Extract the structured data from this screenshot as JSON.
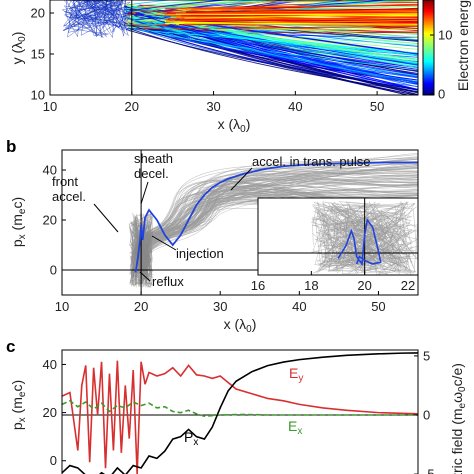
{
  "chart_data": [
    {
      "panel": "a",
      "type": "scatter",
      "xlabel": "x (λ₀)",
      "ylabel": "y (λ₀)",
      "xlim": [
        10,
        55
      ],
      "ylim": [
        10,
        24
      ],
      "xticks": [
        10,
        20,
        30,
        40,
        50
      ],
      "yticks": [
        10,
        15,
        20
      ],
      "colorbar": {
        "label": "Electron energ",
        "ticks": [
          0,
          10
        ],
        "range": [
          0,
          20
        ],
        "colormap": "jet"
      },
      "vline_x": 20
    },
    {
      "panel": "b",
      "type": "line",
      "label": "b",
      "xlabel": "x (λ₀)",
      "ylabel": "pₓ (mₑc)",
      "xlim": [
        10,
        55
      ],
      "ylim": [
        -10,
        48
      ],
      "xticks": [
        10,
        20,
        30,
        40,
        50
      ],
      "yticks": [
        0,
        20,
        40
      ],
      "vline_x": 20,
      "hline_y": 0,
      "series": [
        {
          "color": "#2244dd",
          "x": [
            19.3,
            19.6,
            19.9,
            20.0,
            20.2,
            20.5,
            21.0,
            21.5,
            22.0,
            23.0,
            24.0,
            25.0,
            26.0,
            27.0,
            28.0,
            29.0,
            30.0,
            31.0,
            32.0,
            33.0,
            34.0,
            35.0,
            36.0,
            38.0,
            40.0,
            42.0,
            45.0,
            48.0,
            51.0,
            55.0
          ],
          "y": [
            -1,
            5,
            13,
            18,
            12,
            21,
            24,
            22,
            20,
            14,
            10,
            14,
            20,
            26,
            30,
            33,
            35,
            36.5,
            37.5,
            38.5,
            39.2,
            40,
            40.6,
            41.5,
            42,
            42.3,
            42.6,
            42.8,
            43,
            43
          ]
        }
      ],
      "annotations": [
        "front accel.",
        "sheath decel.",
        "accel. in trans. pulse",
        "injection",
        "reflux"
      ],
      "inset": {
        "xlim": [
          16,
          22
        ],
        "xticks": [
          16,
          18,
          20,
          22
        ],
        "vline_x": 20,
        "hline_y": 0
      }
    },
    {
      "panel": "c",
      "type": "line",
      "label": "c",
      "xlabel": "",
      "ylabel": "pₓ (mₑc)",
      "ylabel_right": "tric field (mₑω₀c/e)",
      "xlim": [
        10,
        55
      ],
      "ylim": [
        -8,
        46
      ],
      "ylim_right": [
        -5.5,
        5.5
      ],
      "yticks": [
        0,
        20,
        40
      ],
      "yticks_right": [
        -5,
        0,
        5
      ],
      "hline_right_y": 0,
      "series": [
        {
          "name": "Eᵧ",
          "color": "#d83030",
          "axis": "right",
          "x": [
            10,
            11,
            12,
            12.5,
            13,
            13.5,
            14,
            14.5,
            15,
            15.5,
            16,
            16.5,
            17,
            17.5,
            18,
            18.5,
            19,
            19.5,
            20,
            20.5,
            21,
            22,
            23,
            24,
            25,
            26,
            27,
            28,
            29,
            30,
            32,
            34,
            36,
            38,
            40,
            43,
            46,
            50,
            55
          ],
          "y": [
            1.6,
            1.9,
            -3,
            2.5,
            4.2,
            -4,
            4,
            0,
            4.5,
            -4.5,
            3.5,
            -3,
            4.6,
            -3.2,
            2.5,
            -2,
            3.8,
            -5,
            4.5,
            2.6,
            3.6,
            3.3,
            3.5,
            4,
            3.3,
            4.2,
            3.4,
            3.3,
            3.1,
            3.3,
            2.2,
            1.8,
            1.4,
            1.2,
            0.9,
            0.6,
            0.4,
            0.2,
            0.1
          ]
        },
        {
          "name": "Eₓ",
          "color": "#3a9a2a",
          "axis": "right",
          "x": [
            10,
            11,
            12,
            13,
            14,
            15,
            16,
            17,
            18,
            19,
            20,
            21,
            22,
            23,
            24,
            25,
            26,
            27,
            28,
            30,
            33,
            36,
            40,
            45,
            50,
            55
          ],
          "y": [
            0.9,
            1.2,
            0.7,
            1.1,
            0.5,
            1.0,
            0.3,
            0.8,
            0.6,
            1.1,
            0.8,
            1.0,
            0.6,
            0.7,
            0.3,
            0.2,
            0.4,
            0.1,
            -0.1,
            0,
            0.05,
            0,
            0,
            0,
            0,
            0
          ]
        },
        {
          "name": "Pₓ",
          "color": "#000000",
          "axis": "left",
          "x": [
            10,
            11,
            12,
            13,
            14,
            15,
            16,
            17,
            18,
            19,
            20,
            21,
            22,
            23,
            24,
            25,
            26,
            27,
            28,
            29,
            30,
            31,
            32,
            34,
            36,
            38,
            40,
            43,
            46,
            50,
            53,
            55
          ],
          "y": [
            -5,
            -2,
            -3,
            -6,
            -8,
            -5,
            -7,
            -3,
            -6,
            -2,
            -3,
            2,
            1,
            4,
            9,
            10,
            13,
            10,
            9,
            14,
            22,
            29,
            33,
            37,
            39.5,
            41,
            42,
            43,
            43.8,
            44.4,
            44.7,
            44.8
          ]
        }
      ]
    }
  ],
  "panel_labels": {
    "b": "b",
    "c": "c"
  },
  "panel_a": {
    "xlabel": "x (λ",
    "xlabel_sub": "0",
    "xlabel_end": ")",
    "ylabel": "y (λ",
    "ylabel_sub": "0",
    "ylabel_end": ")",
    "cbar_label": "Electron energ"
  },
  "panel_b": {
    "xlabel": "x (λ",
    "xlabel_sub": "0",
    "xlabel_end": ")",
    "ylabel": "p",
    "ylabel_sub": "x",
    "ylabel_mid": " (m",
    "ylabel_sub2": "e",
    "ylabel_end": "c)",
    "ann_front_1": "front",
    "ann_front_2": "accel.",
    "ann_sheath_1": "sheath",
    "ann_sheath_2": "decel.",
    "ann_accel": "accel. in trans. pulse",
    "ann_injection": "injection",
    "ann_reflux": "reflux"
  },
  "panel_c": {
    "ylabel": "p",
    "ylabel_sub": "x",
    "ylabel_mid": " (m",
    "ylabel_sub2": "e",
    "ylabel_end": "c)",
    "ylabel_right": "tric field (m",
    "ylabel_right_sub": "e",
    "ylabel_right_mid": "ω",
    "ylabel_right_sub2": "0",
    "ylabel_right_end": "c/e)",
    "leg_ey": "E",
    "leg_ey_sub": "y",
    "leg_ex": "E",
    "leg_ex_sub": "x",
    "leg_px": "P",
    "leg_px_sub": "x"
  },
  "colors": {
    "ey": "#d83030",
    "ex": "#3a9a2a",
    "px": "#000000",
    "traj": "#2244dd",
    "cloud": "#9a9a9a"
  }
}
